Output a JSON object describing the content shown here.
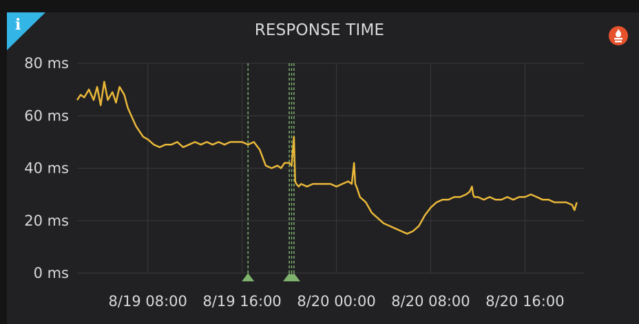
{
  "panel": {
    "title": "RESPONSE TIME",
    "info_icon": "info-icon",
    "datasource_icon": "prometheus-icon"
  },
  "colors": {
    "series": "#eab839",
    "annotation": "#7eb26d",
    "info_corner": "#33b5e5",
    "datasource": "#e6522c",
    "grid": "#3a3a3d",
    "panel_bg": "#212124"
  },
  "chart_data": {
    "type": "line",
    "title": "RESPONSE TIME",
    "xlabel": "",
    "ylabel": "",
    "ylim": [
      0,
      80
    ],
    "y_ticks": [
      {
        "value": 0,
        "label": "0 ms"
      },
      {
        "value": 20,
        "label": "20 ms"
      },
      {
        "value": 40,
        "label": "40 ms"
      },
      {
        "value": 60,
        "label": "60 ms"
      },
      {
        "value": 80,
        "label": "80 ms"
      }
    ],
    "x_ticks": [
      {
        "value": 8,
        "label": "8/19 08:00"
      },
      {
        "value": 16,
        "label": "8/19 16:00"
      },
      {
        "value": 24,
        "label": "8/20 00:00"
      },
      {
        "value": 32,
        "label": "8/20 08:00"
      },
      {
        "value": 40,
        "label": "8/20 16:00"
      }
    ],
    "xlim": [
      2,
      45
    ],
    "grid": true,
    "legend": "none",
    "annotations": [
      16.5,
      20.0,
      20.2,
      20.4
    ],
    "series": [
      {
        "x": [
          2,
          2.3,
          2.6,
          3,
          3.4,
          3.7,
          4,
          4.3,
          4.6,
          5,
          5.3,
          5.6,
          6,
          6.3,
          6.6,
          7,
          7.3,
          7.6,
          8,
          8.5,
          9,
          9.5,
          10,
          10.5,
          11,
          11.5,
          12,
          12.5,
          13,
          13.5,
          14,
          14.5,
          15,
          15.5,
          16,
          16.5,
          17,
          17.5,
          18,
          18.5,
          19,
          19.3,
          19.6,
          20,
          20.2,
          20.4,
          20.5,
          20.6,
          20.8,
          21,
          21.5,
          22,
          22.5,
          23,
          23.5,
          24,
          24.5,
          25,
          25.3,
          25.5,
          25.6,
          25.7,
          26,
          26.5,
          27,
          27.5,
          28,
          28.5,
          29,
          29.5,
          30,
          30.5,
          31,
          31.5,
          32,
          32.5,
          33,
          33.5,
          34,
          34.5,
          35,
          35.3,
          35.5,
          35.6,
          35.7,
          36,
          36.5,
          37,
          37.5,
          38,
          38.5,
          39,
          39.5,
          40,
          40.5,
          41,
          41.5,
          42,
          42.5,
          43,
          43.5,
          44,
          44.2,
          44.4
        ],
        "y": [
          66,
          68,
          67,
          70,
          66,
          71,
          64,
          73,
          66,
          69,
          65,
          71,
          68,
          63,
          60,
          56,
          54,
          52,
          51,
          49,
          48,
          49,
          49,
          50,
          48,
          49,
          50,
          49,
          50,
          49,
          50,
          49,
          50,
          50,
          50,
          49,
          50,
          47,
          41,
          40,
          41,
          40,
          42,
          42,
          41,
          52,
          35,
          34,
          33,
          34,
          33,
          34,
          34,
          34,
          34,
          33,
          34,
          35,
          34,
          42,
          34,
          33,
          29,
          27,
          23,
          21,
          19,
          18,
          17,
          16,
          15,
          16,
          18,
          22,
          25,
          27,
          28,
          28,
          29,
          29,
          30,
          31,
          33,
          30,
          29,
          29,
          28,
          29,
          28,
          28,
          29,
          28,
          29,
          29,
          30,
          29,
          28,
          28,
          27,
          27,
          27,
          26,
          24,
          27
        ]
      }
    ]
  }
}
